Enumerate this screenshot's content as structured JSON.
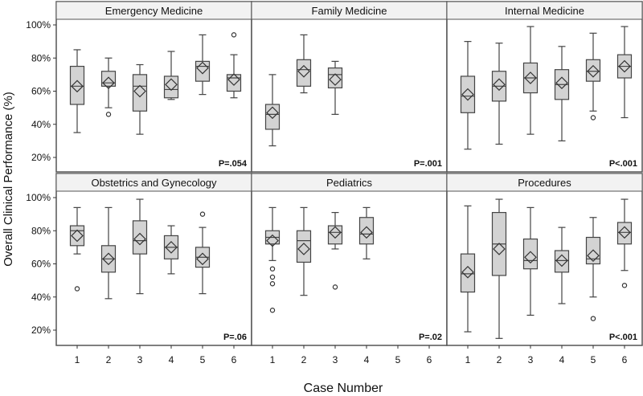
{
  "chart_data": {
    "type": "box",
    "ylabel": "Overall Clinical Performance (%)",
    "xlabel": "Case Number",
    "ylim": [
      15,
      105
    ],
    "yticks": [
      20,
      40,
      60,
      80,
      100
    ],
    "ytick_labels": [
      "20%",
      "40%",
      "60%",
      "80%",
      "100%"
    ],
    "x_categories": [
      "1",
      "2",
      "3",
      "4",
      "5",
      "6"
    ],
    "panels": [
      {
        "title": "Emergency Medicine",
        "pvalue": "P=.054",
        "boxes": [
          {
            "case": 1,
            "min": 35,
            "q1": 52,
            "median": 63,
            "q3": 75,
            "max": 85,
            "mean": 63,
            "outliers": []
          },
          {
            "case": 2,
            "min": 50,
            "q1": 63,
            "median": 65,
            "q3": 72,
            "max": 80,
            "mean": 65,
            "outliers": [
              46
            ]
          },
          {
            "case": 3,
            "min": 34,
            "q1": 48,
            "median": 63,
            "q3": 70,
            "max": 76,
            "mean": 60,
            "outliers": []
          },
          {
            "case": 4,
            "min": 55,
            "q1": 56,
            "median": 61,
            "q3": 69,
            "max": 84,
            "mean": 64,
            "outliers": []
          },
          {
            "case": 5,
            "min": 58,
            "q1": 66,
            "median": 75,
            "q3": 78,
            "max": 94,
            "mean": 74,
            "outliers": []
          },
          {
            "case": 6,
            "min": 56,
            "q1": 60,
            "median": 68,
            "q3": 70,
            "max": 82,
            "mean": 67,
            "outliers": [
              94
            ]
          }
        ]
      },
      {
        "title": "Family Medicine",
        "pvalue": "P=.001",
        "boxes": [
          {
            "case": 1,
            "min": 27,
            "q1": 37,
            "median": 46,
            "q3": 52,
            "max": 70,
            "mean": 47,
            "outliers": []
          },
          {
            "case": 2,
            "min": 59,
            "q1": 63,
            "median": 73,
            "q3": 79,
            "max": 94,
            "mean": 72,
            "outliers": []
          },
          {
            "case": 3,
            "min": 46,
            "q1": 62,
            "median": 70,
            "q3": 74,
            "max": 78,
            "mean": 67,
            "outliers": []
          }
        ]
      },
      {
        "title": "Internal Medicine",
        "pvalue": "P<.001",
        "boxes": [
          {
            "case": 1,
            "min": 25,
            "q1": 47,
            "median": 57,
            "q3": 69,
            "max": 90,
            "mean": 58,
            "outliers": []
          },
          {
            "case": 2,
            "min": 28,
            "q1": 54,
            "median": 63,
            "q3": 72,
            "max": 89,
            "mean": 64,
            "outliers": []
          },
          {
            "case": 3,
            "min": 34,
            "q1": 59,
            "median": 68,
            "q3": 77,
            "max": 99,
            "mean": 68,
            "outliers": []
          },
          {
            "case": 4,
            "min": 30,
            "q1": 55,
            "median": 64,
            "q3": 73,
            "max": 87,
            "mean": 65,
            "outliers": []
          },
          {
            "case": 5,
            "min": 48,
            "q1": 66,
            "median": 72,
            "q3": 79,
            "max": 95,
            "mean": 72,
            "outliers": [
              44
            ]
          },
          {
            "case": 6,
            "min": 44,
            "q1": 68,
            "median": 75,
            "q3": 82,
            "max": 99,
            "mean": 75,
            "outliers": []
          }
        ]
      },
      {
        "title": "Obstetrics and Gynecology",
        "pvalue": "P=.06",
        "boxes": [
          {
            "case": 1,
            "min": 66,
            "q1": 71,
            "median": 80,
            "q3": 83,
            "max": 94,
            "mean": 77,
            "outliers": [
              45
            ]
          },
          {
            "case": 2,
            "min": 39,
            "q1": 55,
            "median": 63,
            "q3": 71,
            "max": 94,
            "mean": 63,
            "outliers": []
          },
          {
            "case": 3,
            "min": 42,
            "q1": 66,
            "median": 74,
            "q3": 86,
            "max": 99,
            "mean": 75,
            "outliers": []
          },
          {
            "case": 4,
            "min": 54,
            "q1": 63,
            "median": 70,
            "q3": 77,
            "max": 83,
            "mean": 70,
            "outliers": []
          },
          {
            "case": 5,
            "min": 42,
            "q1": 58,
            "median": 64,
            "q3": 70,
            "max": 82,
            "mean": 63,
            "outliers": [
              90
            ]
          }
        ]
      },
      {
        "title": "Pediatrics",
        "pvalue": "P=.02",
        "boxes": [
          {
            "case": 1,
            "min": 62,
            "q1": 72,
            "median": 76,
            "q3": 80,
            "max": 94,
            "mean": 74,
            "outliers": [
              57,
              52,
              48,
              32
            ]
          },
          {
            "case": 2,
            "min": 41,
            "q1": 61,
            "median": 74,
            "q3": 80,
            "max": 94,
            "mean": 69,
            "outliers": []
          },
          {
            "case": 3,
            "min": 69,
            "q1": 72,
            "median": 79,
            "q3": 83,
            "max": 91,
            "mean": 79,
            "outliers": [
              46
            ]
          },
          {
            "case": 4,
            "min": 63,
            "q1": 72,
            "median": 78,
            "q3": 88,
            "max": 94,
            "mean": 79,
            "outliers": []
          }
        ]
      },
      {
        "title": "Procedures",
        "pvalue": "P<.001",
        "boxes": [
          {
            "case": 1,
            "min": 19,
            "q1": 43,
            "median": 54,
            "q3": 66,
            "max": 95,
            "mean": 55,
            "outliers": []
          },
          {
            "case": 2,
            "min": 15,
            "q1": 53,
            "median": 72,
            "q3": 91,
            "max": 99,
            "mean": 69,
            "outliers": []
          },
          {
            "case": 3,
            "min": 29,
            "q1": 57,
            "median": 62,
            "q3": 75,
            "max": 94,
            "mean": 64,
            "outliers": []
          },
          {
            "case": 4,
            "min": 36,
            "q1": 55,
            "median": 62,
            "q3": 68,
            "max": 82,
            "mean": 62,
            "outliers": []
          },
          {
            "case": 5,
            "min": 40,
            "q1": 60,
            "median": 63,
            "q3": 76,
            "max": 88,
            "mean": 65,
            "outliers": [
              27
            ]
          },
          {
            "case": 6,
            "min": 56,
            "q1": 72,
            "median": 79,
            "q3": 85,
            "max": 99,
            "mean": 79,
            "outliers": [
              47
            ]
          }
        ]
      }
    ]
  }
}
